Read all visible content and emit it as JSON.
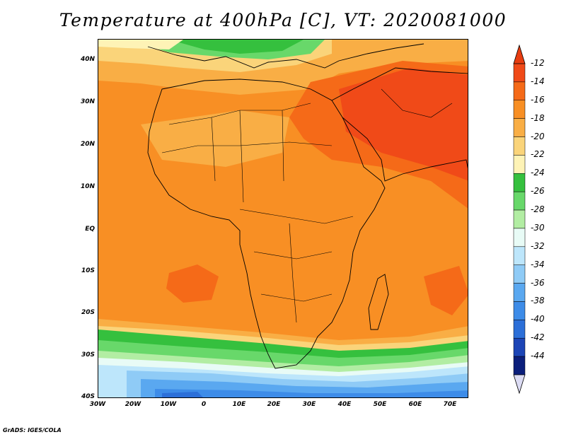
{
  "title": "Temperature at 400hPa [C], VT: 2020081000",
  "credit": "GrADS: IGES/COLA",
  "lat_ticks": [
    "40N",
    "30N",
    "20N",
    "10N",
    "EQ",
    "10S",
    "20S",
    "30S",
    "40S"
  ],
  "lon_ticks": [
    "30W",
    "20W",
    "10W",
    "0",
    "10E",
    "20E",
    "30E",
    "40E",
    "50E",
    "60E",
    "70E"
  ],
  "colorbar": {
    "labels": [
      "-12",
      "-14",
      "-16",
      "-18",
      "-20",
      "-22",
      "-24",
      "-26",
      "-28",
      "-30",
      "-32",
      "-34",
      "-36",
      "-38",
      "-40",
      "-42",
      "-44"
    ],
    "colors": [
      "#f04a18",
      "#f56a18",
      "#f88f24",
      "#f9ae45",
      "#fad47a",
      "#fef3b6",
      "#35c03e",
      "#68d86a",
      "#b2eda3",
      "#e8fbf6",
      "#bde6fb",
      "#8fcbf6",
      "#5aa8f0",
      "#3d8ce8",
      "#2c6fd8",
      "#1c45b6",
      "#0b1f7c"
    ],
    "over_color": "#e83d10",
    "under_color": "#dcdcf4"
  },
  "map": {
    "lon_range": [
      -30,
      75
    ],
    "lat_range": [
      -40,
      45
    ],
    "field": "temperature",
    "level": "400hPa",
    "unit": "C"
  }
}
